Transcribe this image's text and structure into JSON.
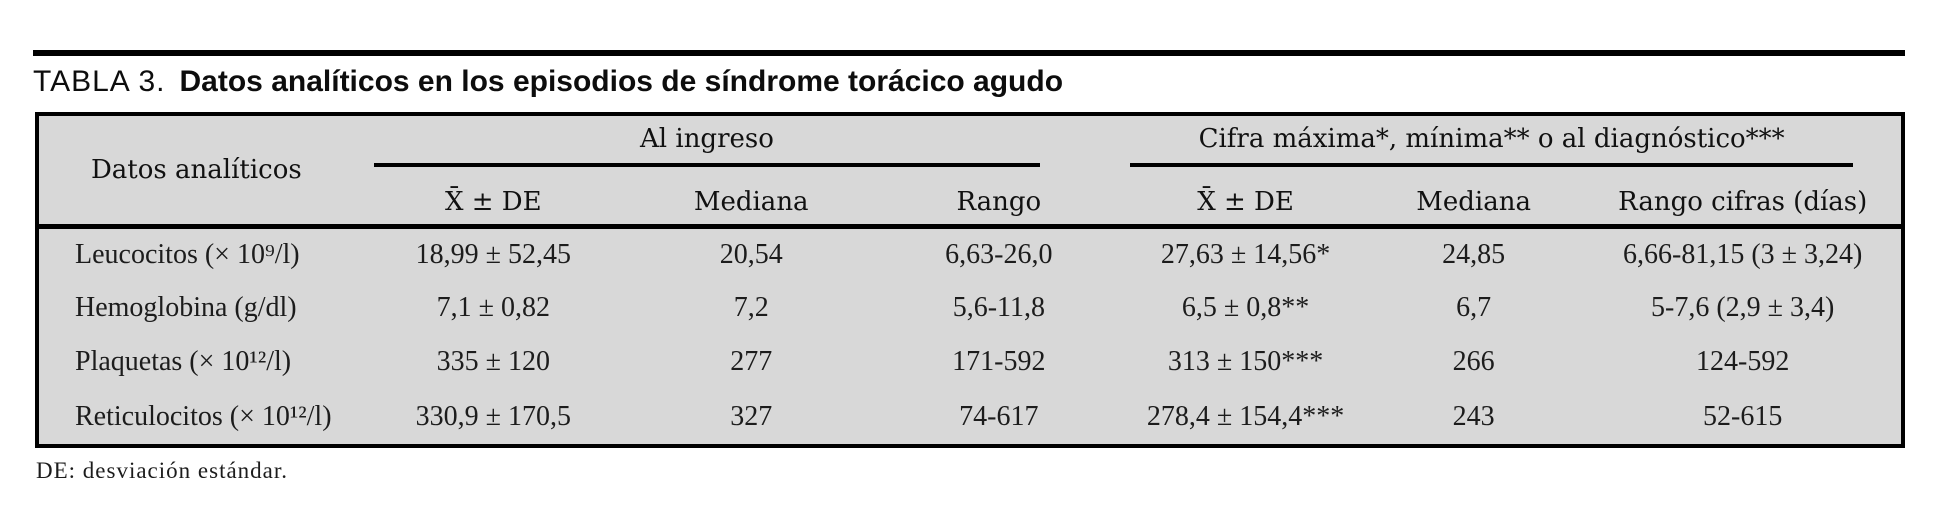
{
  "page": {
    "title_label": "TABLA 3.",
    "title_text": "Datos analíticos en los episodios de síndrome torácico agudo",
    "footnote": "DE: desviación estándar."
  },
  "table": {
    "corner": "Datos analíticos",
    "group1": {
      "label": "Al ingreso",
      "col1": "X̄ ± DE",
      "col2": "Mediana",
      "col3": "Rango"
    },
    "group2": {
      "label": "Cifra máxima*, mínima** o al diagnóstico***",
      "col1": "X̄ ± DE",
      "col2": "Mediana",
      "col3": "Rango cifras (días)"
    },
    "rows": [
      {
        "label": "Leucocitos (× 10⁹/l)",
        "c1": "18,99 ± 52,45",
        "c2": "20,54",
        "c3": "6,63-26,0",
        "c4": "27,63 ± 14,56*",
        "c5": "24,85",
        "c6": "6,66-81,15 (3 ± 3,24)"
      },
      {
        "label": "Hemoglobina (g/dl)",
        "c1": "7,1 ± 0,82",
        "c2": "7,2",
        "c3": "5,6-11,8",
        "c4": "6,5 ± 0,8**",
        "c5": "6,7",
        "c6": "5-7,6 (2,9 ± 3,4)"
      },
      {
        "label": "Plaquetas (× 10¹²/l)",
        "c1": "335 ± 120",
        "c2": "277",
        "c3": "171-592",
        "c4": "313 ± 150***",
        "c5": "266",
        "c6": "124-592"
      },
      {
        "label": "Reticulocitos (× 10¹²/l)",
        "c1": "330,9 ± 170,5",
        "c2": "327",
        "c3": "74-617",
        "c4": "278,4 ± 154,4***",
        "c5": "243",
        "c6": "52-615"
      }
    ]
  },
  "colors": {
    "table_background": "#d8d8d8",
    "rule": "#000000",
    "text": "#161616",
    "page_background": "#ffffff"
  }
}
